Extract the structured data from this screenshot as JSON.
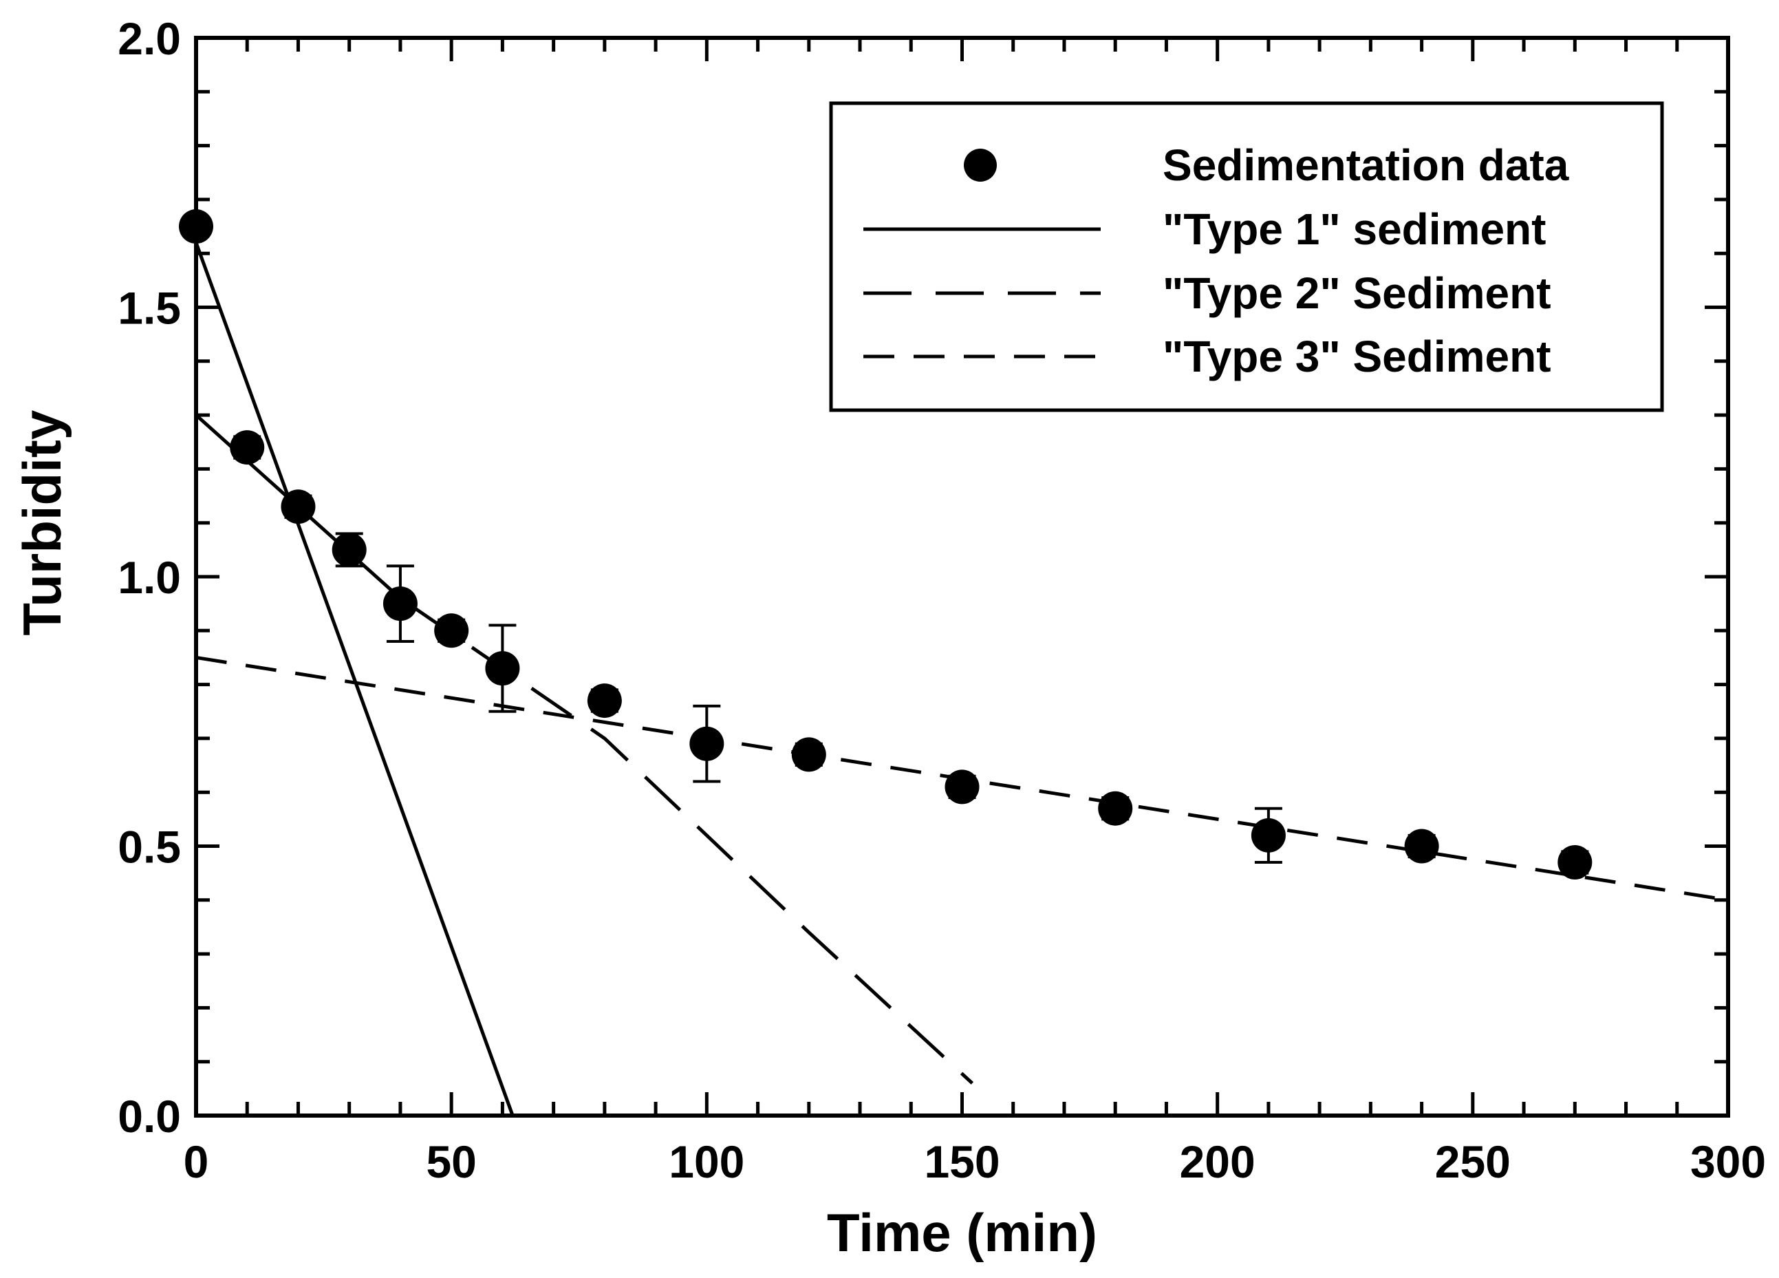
{
  "chart_data": {
    "type": "scatter",
    "title": "",
    "xlabel": "Time (min)",
    "ylabel": "Turbidity",
    "xlim": [
      0,
      300
    ],
    "ylim": [
      0.0,
      2.0
    ],
    "x_ticks": [
      0,
      50,
      100,
      150,
      200,
      250,
      300
    ],
    "x_tick_labels": [
      "0",
      "50",
      "100",
      "150",
      "200",
      "250",
      "300"
    ],
    "y_ticks": [
      0.0,
      0.5,
      1.0,
      1.5,
      2.0
    ],
    "y_tick_labels": [
      "0.0",
      "0.5",
      "1.0",
      "1.5",
      "2.0"
    ],
    "x_minor_step": 10,
    "y_minor_step": 0.1,
    "grid": false,
    "legend_position": "top-right",
    "series": [
      {
        "name": "Sedimentation data",
        "kind": "scatter",
        "color": "#000000",
        "points": [
          {
            "x": 0,
            "y": 1.65,
            "err": 0.0
          },
          {
            "x": 10,
            "y": 1.24,
            "err": 0.02
          },
          {
            "x": 20,
            "y": 1.13,
            "err": 0.02
          },
          {
            "x": 30,
            "y": 1.05,
            "err": 0.03
          },
          {
            "x": 40,
            "y": 0.95,
            "err": 0.07
          },
          {
            "x": 50,
            "y": 0.9,
            "err": 0.02
          },
          {
            "x": 60,
            "y": 0.83,
            "err": 0.08
          },
          {
            "x": 80,
            "y": 0.77,
            "err": 0.02
          },
          {
            "x": 100,
            "y": 0.69,
            "err": 0.07
          },
          {
            "x": 120,
            "y": 0.67,
            "err": 0.02
          },
          {
            "x": 150,
            "y": 0.61,
            "err": 0.02
          },
          {
            "x": 180,
            "y": 0.57,
            "err": 0.02
          },
          {
            "x": 210,
            "y": 0.52,
            "err": 0.05
          },
          {
            "x": 240,
            "y": 0.5,
            "err": 0.02
          },
          {
            "x": 270,
            "y": 0.47,
            "err": 0.02
          }
        ]
      },
      {
        "name": "\"Type 1\" sediment",
        "kind": "line",
        "style": "solid",
        "color": "#000000",
        "x": [
          0,
          62
        ],
        "y": [
          1.62,
          0.0
        ]
      },
      {
        "name": "\"Type 2\" Sediment",
        "kind": "line",
        "style": "long-dash",
        "color": "#000000",
        "x": [
          0,
          40,
          80,
          120,
          152
        ],
        "y": [
          1.3,
          0.96,
          0.7,
          0.34,
          0.06
        ]
      },
      {
        "name": "\"Type 3\" Sediment",
        "kind": "line",
        "style": "short-dash",
        "color": "#000000",
        "x": [
          0,
          300
        ],
        "y": [
          0.85,
          0.4
        ]
      }
    ]
  }
}
